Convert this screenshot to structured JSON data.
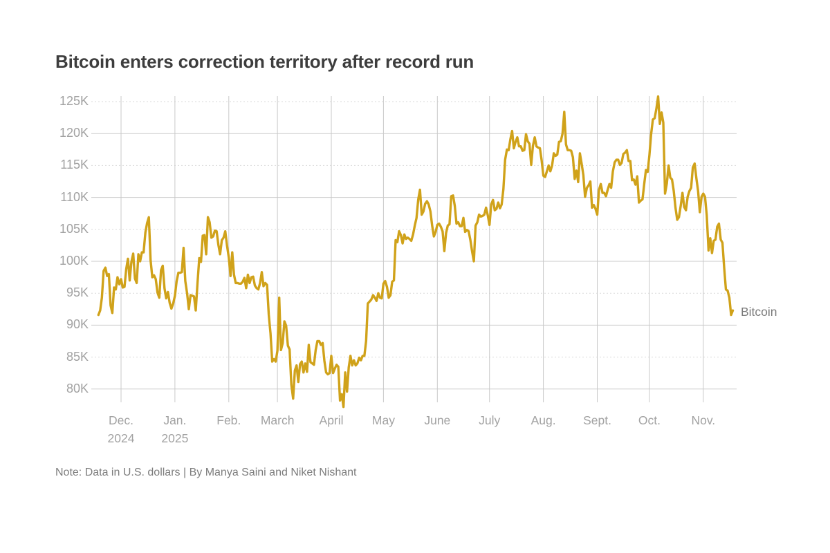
{
  "header": {
    "title": "Bitcoin enters correction territory after record run"
  },
  "footer": {
    "note": "Note: Data in U.S. dollars | By Manya Saini and Niket Nishant"
  },
  "series_label": "Bitcoin",
  "colors": {
    "line": "#D0A21A",
    "grid_solid": "#cbcbcb",
    "grid_dashed": "#dadada",
    "grid_vertical": "#c9c9c9",
    "axis_text": "#a2a2a2",
    "title_text": "#3d3d3d",
    "note_text": "#7d7d7d"
  },
  "chart_data": {
    "type": "line",
    "title": "Bitcoin enters correction territory after record run",
    "xlabel": "",
    "ylabel": "",
    "grid": true,
    "legend_position": "right-end-of-line",
    "ylim_thousands": [
      77,
      126.5
    ],
    "y_ticks": [
      {
        "label": "80K",
        "value": 80
      },
      {
        "label": "85K",
        "value": 85
      },
      {
        "label": "90K",
        "value": 90
      },
      {
        "label": "95K",
        "value": 95
      },
      {
        "label": "100K",
        "value": 100
      },
      {
        "label": "105K",
        "value": 105
      },
      {
        "label": "110K",
        "value": 110
      },
      {
        "label": "115K",
        "value": 115
      },
      {
        "label": "120K",
        "value": 120
      },
      {
        "label": "125K",
        "value": 125
      }
    ],
    "x_ticks": [
      {
        "label": "Dec.",
        "sublabel": "2024",
        "day_index": 13
      },
      {
        "label": "Jan.",
        "sublabel": "2025",
        "day_index": 44
      },
      {
        "label": "Feb.",
        "sublabel": "",
        "day_index": 75
      },
      {
        "label": "March",
        "sublabel": "",
        "day_index": 103
      },
      {
        "label": "April",
        "sublabel": "",
        "day_index": 134
      },
      {
        "label": "May",
        "sublabel": "",
        "day_index": 164
      },
      {
        "label": "June",
        "sublabel": "",
        "day_index": 195
      },
      {
        "label": "July",
        "sublabel": "",
        "day_index": 225
      },
      {
        "label": "Aug.",
        "sublabel": "",
        "day_index": 256
      },
      {
        "label": "Sept.",
        "sublabel": "",
        "day_index": 287
      },
      {
        "label": "Oct.",
        "sublabel": "",
        "day_index": 317
      },
      {
        "label": "Nov.",
        "sublabel": "",
        "day_index": 348
      }
    ],
    "series": [
      {
        "name": "Bitcoin",
        "unit": "USD thousands, daily",
        "values_usd_thousands": [
          91.6,
          92.3,
          94.3,
          98.5,
          99.0,
          97.7,
          98.0,
          93.1,
          91.9,
          95.9,
          95.6,
          97.5,
          96.4,
          97.2,
          95.9,
          96.0,
          98.8,
          100.4,
          97.0,
          99.9,
          101.2,
          97.3,
          96.6,
          101.1,
          100.0,
          101.4,
          101.4,
          104.5,
          106.0,
          106.9,
          100.2,
          97.5,
          97.8,
          97.2,
          95.1,
          94.3,
          98.6,
          99.3,
          95.8,
          94.2,
          95.2,
          93.5,
          92.6,
          93.4,
          94.6,
          96.9,
          98.2,
          98.2,
          98.3,
          102.1,
          96.9,
          95.0,
          92.5,
          94.7,
          94.6,
          94.5,
          92.3,
          96.5,
          100.5,
          99.9,
          104.0,
          104.1,
          101.1,
          106.9,
          106.1,
          103.7,
          103.9,
          104.8,
          104.7,
          102.6,
          101.1,
          103.3,
          103.7,
          104.7,
          102.4,
          100.6,
          97.7,
          101.4,
          97.9,
          96.6,
          96.6,
          96.5,
          96.5,
          96.8,
          97.4,
          95.8,
          97.9,
          96.6,
          97.5,
          97.6,
          96.2,
          95.8,
          95.6,
          96.6,
          98.3,
          96.1,
          96.6,
          96.3,
          91.6,
          88.7,
          84.3,
          84.7,
          84.3,
          86.0,
          94.3,
          86.1,
          87.2,
          90.6,
          89.9,
          86.8,
          86.2,
          80.7,
          78.5,
          82.9,
          83.7,
          81.1,
          83.9,
          84.3,
          82.6,
          84.0,
          82.7,
          86.9,
          84.2,
          84.0,
          83.8,
          86.1,
          87.5,
          87.5,
          86.9,
          87.2,
          84.4,
          82.6,
          82.3,
          82.5,
          85.2,
          82.5,
          83.2,
          83.8,
          83.5,
          78.2,
          79.2,
          77.2,
          82.6,
          79.6,
          83.4,
          85.2,
          83.7,
          84.5,
          83.7,
          84.0,
          84.9,
          84.5,
          85.2,
          85.2,
          87.5,
          93.4,
          93.7,
          94.0,
          94.7,
          94.3,
          93.8,
          95.0,
          94.3,
          94.2,
          96.5,
          96.9,
          96.0,
          94.3,
          94.7,
          96.8,
          97.0,
          103.3,
          103.0,
          104.7,
          104.1,
          102.8,
          104.2,
          103.5,
          103.7,
          103.5,
          103.2,
          104.2,
          105.6,
          106.8,
          109.7,
          111.2,
          107.3,
          107.8,
          109.0,
          109.4,
          108.9,
          107.8,
          105.6,
          103.9,
          104.6,
          105.7,
          105.9,
          105.4,
          104.7,
          101.6,
          104.4,
          105.6,
          105.8,
          110.2,
          110.3,
          108.7,
          105.9,
          106.1,
          105.5,
          105.5,
          106.8,
          104.6,
          104.9,
          104.7,
          103.3,
          101.5,
          100.0,
          105.6,
          106.1,
          107.3,
          107.0,
          107.1,
          107.3,
          108.4,
          107.2,
          105.7,
          108.9,
          109.6,
          108.0,
          108.2,
          109.2,
          108.3,
          108.9,
          111.3,
          115.9,
          117.5,
          117.4,
          119.1,
          120.4,
          117.7,
          118.7,
          119.4,
          118.0,
          118.0,
          117.3,
          117.4,
          119.9,
          118.8,
          118.4,
          115.1,
          118.1,
          119.4,
          118.0,
          117.8,
          117.7,
          115.8,
          113.4,
          113.2,
          114.1,
          115.0,
          114.1,
          115.0,
          116.9,
          116.5,
          116.7,
          118.7,
          118.8,
          120.0,
          123.4,
          118.3,
          117.4,
          117.4,
          117.3,
          116.3,
          112.9,
          114.2,
          112.4,
          116.9,
          115.3,
          113.5,
          110.1,
          111.5,
          111.9,
          112.5,
          108.4,
          108.8,
          108.2,
          107.3,
          111.2,
          112.1,
          110.7,
          110.7,
          110.2,
          111.2,
          112.1,
          111.5,
          114.1,
          115.5,
          115.9,
          115.9,
          115.1,
          115.4,
          116.8,
          117.0,
          117.4,
          115.7,
          115.7,
          112.7,
          112.8,
          112.0,
          113.3,
          109.2,
          109.5,
          109.7,
          112.1,
          114.3,
          114.0,
          116.6,
          119.9,
          122.2,
          122.4,
          123.9,
          125.8,
          121.5,
          123.3,
          121.7,
          110.6,
          112.2,
          115.0,
          113.1,
          112.8,
          111.0,
          108.4,
          106.5,
          106.9,
          108.7,
          110.7,
          108.5,
          108.0,
          110.1,
          111.0,
          111.5,
          114.7,
          115.3,
          113.0,
          111.0,
          107.7,
          110.1,
          110.6,
          110.1,
          107.2,
          101.7,
          103.6,
          101.3,
          103.2,
          103.4,
          105.4,
          105.9,
          103.4,
          102.9,
          99.0,
          95.6,
          95.4,
          94.3,
          91.6,
          92.3
        ]
      }
    ]
  }
}
